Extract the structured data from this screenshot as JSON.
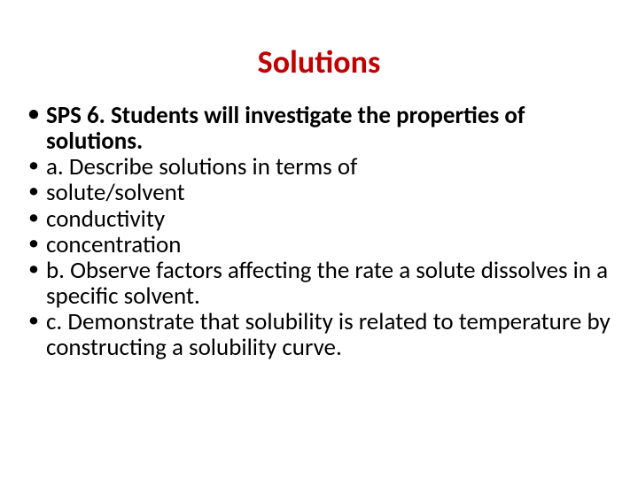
{
  "title": {
    "text": "Solutions",
    "color": "#c00000",
    "fontsize": 36,
    "fontweight": 700
  },
  "bullets": [
    {
      "text": "SPS 6. Students will investigate the properties of solutions.",
      "bold": true
    },
    {
      "text": "a. Describe solutions in terms of",
      "bold": false
    },
    {
      "text": " solute/solvent",
      "bold": false
    },
    {
      "text": " conductivity",
      "bold": false
    },
    {
      "text": " concentration",
      "bold": false
    },
    {
      "text": "b. Observe factors affecting the rate a solute dissolves in a specific solvent.",
      "bold": false
    },
    {
      "text": "c. Demonstrate that solubility is related to temperature by constructing a solubility curve.",
      "bold": false
    }
  ],
  "style": {
    "body_fontsize": 27,
    "body_color": "#000000",
    "background_color": "#ffffff",
    "line_height": 1.08
  }
}
